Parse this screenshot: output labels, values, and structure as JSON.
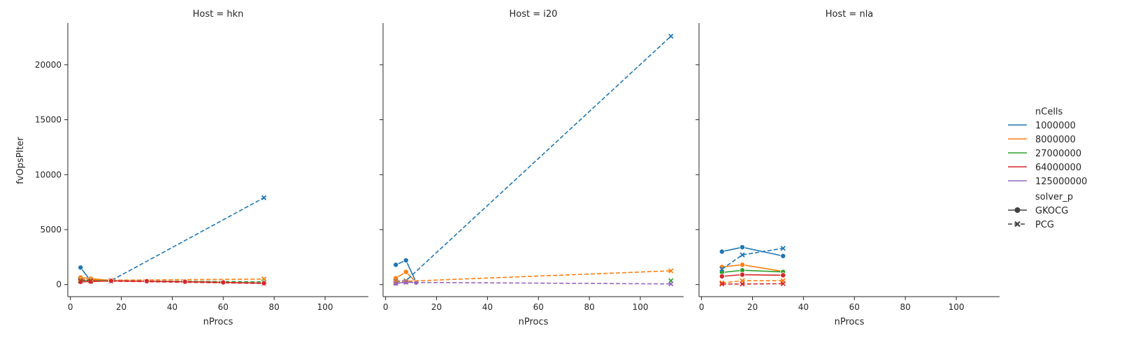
{
  "figure": {
    "ylabel": "fvOpsPIter",
    "xlabel": "nProcs"
  },
  "chart_data": {
    "type": "line",
    "xlim": [
      -1,
      117
    ],
    "ylim": [
      -1100,
      23800
    ],
    "xticks": [
      0,
      20,
      40,
      60,
      80,
      100
    ],
    "yticks": [
      0,
      5000,
      10000,
      15000,
      20000
    ],
    "hue_title": "nCells",
    "style_title": "solver_p",
    "hues": [
      {
        "name": "1000000",
        "color": "#1f77b4"
      },
      {
        "name": "8000000",
        "color": "#ff7f0e"
      },
      {
        "name": "27000000",
        "color": "#2ca02c"
      },
      {
        "name": "64000000",
        "color": "#d62728"
      },
      {
        "name": "125000000",
        "color": "#9467bd"
      }
    ],
    "styles": [
      {
        "name": "GKOCG",
        "marker": "circle",
        "dash": "solid"
      },
      {
        "name": "PCG",
        "marker": "x",
        "dash": "dashed"
      }
    ],
    "panels": [
      {
        "title": "Host = hkn",
        "series": [
          {
            "hue": 0,
            "style": 0,
            "x": [
              4,
              8,
              16
            ],
            "y": [
              1550,
              320,
              330
            ]
          },
          {
            "hue": 1,
            "style": 0,
            "x": [
              4,
              8,
              16
            ],
            "y": [
              650,
              540,
              370
            ]
          },
          {
            "hue": 2,
            "style": 0,
            "x": [
              4,
              8,
              16
            ],
            "y": [
              400,
              380,
              350
            ]
          },
          {
            "hue": 3,
            "style": 0,
            "x": [
              4,
              8,
              16
            ],
            "y": [
              250,
              270,
              340
            ]
          },
          {
            "hue": 0,
            "style": 1,
            "x": [
              4,
              8,
              16,
              76
            ],
            "y": [
              420,
              380,
              360,
              7900
            ]
          },
          {
            "hue": 1,
            "style": 1,
            "x": [
              4,
              8,
              16,
              76
            ],
            "y": [
              500,
              460,
              400,
              500
            ]
          },
          {
            "hue": 2,
            "style": 1,
            "x": [
              4,
              8,
              16,
              76
            ],
            "y": [
              360,
              350,
              340,
              250
            ]
          },
          {
            "hue": 3,
            "style": 1,
            "x": [
              4,
              8,
              16,
              76
            ],
            "y": [
              330,
              320,
              310,
              100
            ]
          },
          {
            "hue": 3,
            "style": 0,
            "x": [
              16,
              30,
              45,
              60,
              76
            ],
            "y": [
              340,
              310,
              260,
              200,
              130
            ]
          }
        ]
      },
      {
        "title": "Host = i20",
        "series": [
          {
            "hue": 0,
            "style": 0,
            "x": [
              4,
              8,
              12
            ],
            "y": [
              1800,
              2200,
              200
            ]
          },
          {
            "hue": 1,
            "style": 0,
            "x": [
              4,
              8,
              12
            ],
            "y": [
              580,
              1150,
              200
            ]
          },
          {
            "hue": 4,
            "style": 0,
            "x": [
              4,
              8,
              12
            ],
            "y": [
              100,
              230,
              180
            ]
          },
          {
            "hue": 0,
            "style": 1,
            "x": [
              4,
              8,
              112
            ],
            "y": [
              300,
              350,
              22600
            ]
          },
          {
            "hue": 1,
            "style": 1,
            "x": [
              4,
              8,
              112
            ],
            "y": [
              250,
              300,
              1250
            ]
          },
          {
            "hue": 2,
            "style": 1,
            "x": [
              112
            ],
            "y": [
              350
            ]
          },
          {
            "hue": 4,
            "style": 1,
            "x": [
              4,
              8,
              112
            ],
            "y": [
              120,
              200,
              60
            ]
          }
        ]
      },
      {
        "title": "Host = nla",
        "series": [
          {
            "hue": 0,
            "style": 0,
            "x": [
              8,
              16,
              32
            ],
            "y": [
              3000,
              3400,
              2600
            ]
          },
          {
            "hue": 1,
            "style": 0,
            "x": [
              8,
              16,
              32
            ],
            "y": [
              1600,
              1800,
              1200
            ]
          },
          {
            "hue": 2,
            "style": 0,
            "x": [
              8,
              16,
              32
            ],
            "y": [
              1100,
              1300,
              1150
            ]
          },
          {
            "hue": 3,
            "style": 0,
            "x": [
              8,
              16,
              32
            ],
            "y": [
              750,
              900,
              850
            ]
          },
          {
            "hue": 0,
            "style": 1,
            "x": [
              8,
              16,
              32
            ],
            "y": [
              1400,
              2700,
              3300
            ]
          },
          {
            "hue": 1,
            "style": 1,
            "x": [
              8,
              16,
              32
            ],
            "y": [
              150,
              350,
              350
            ]
          },
          {
            "hue": 3,
            "style": 1,
            "x": [
              8,
              16,
              32
            ],
            "y": [
              50,
              50,
              80
            ]
          }
        ]
      }
    ]
  }
}
